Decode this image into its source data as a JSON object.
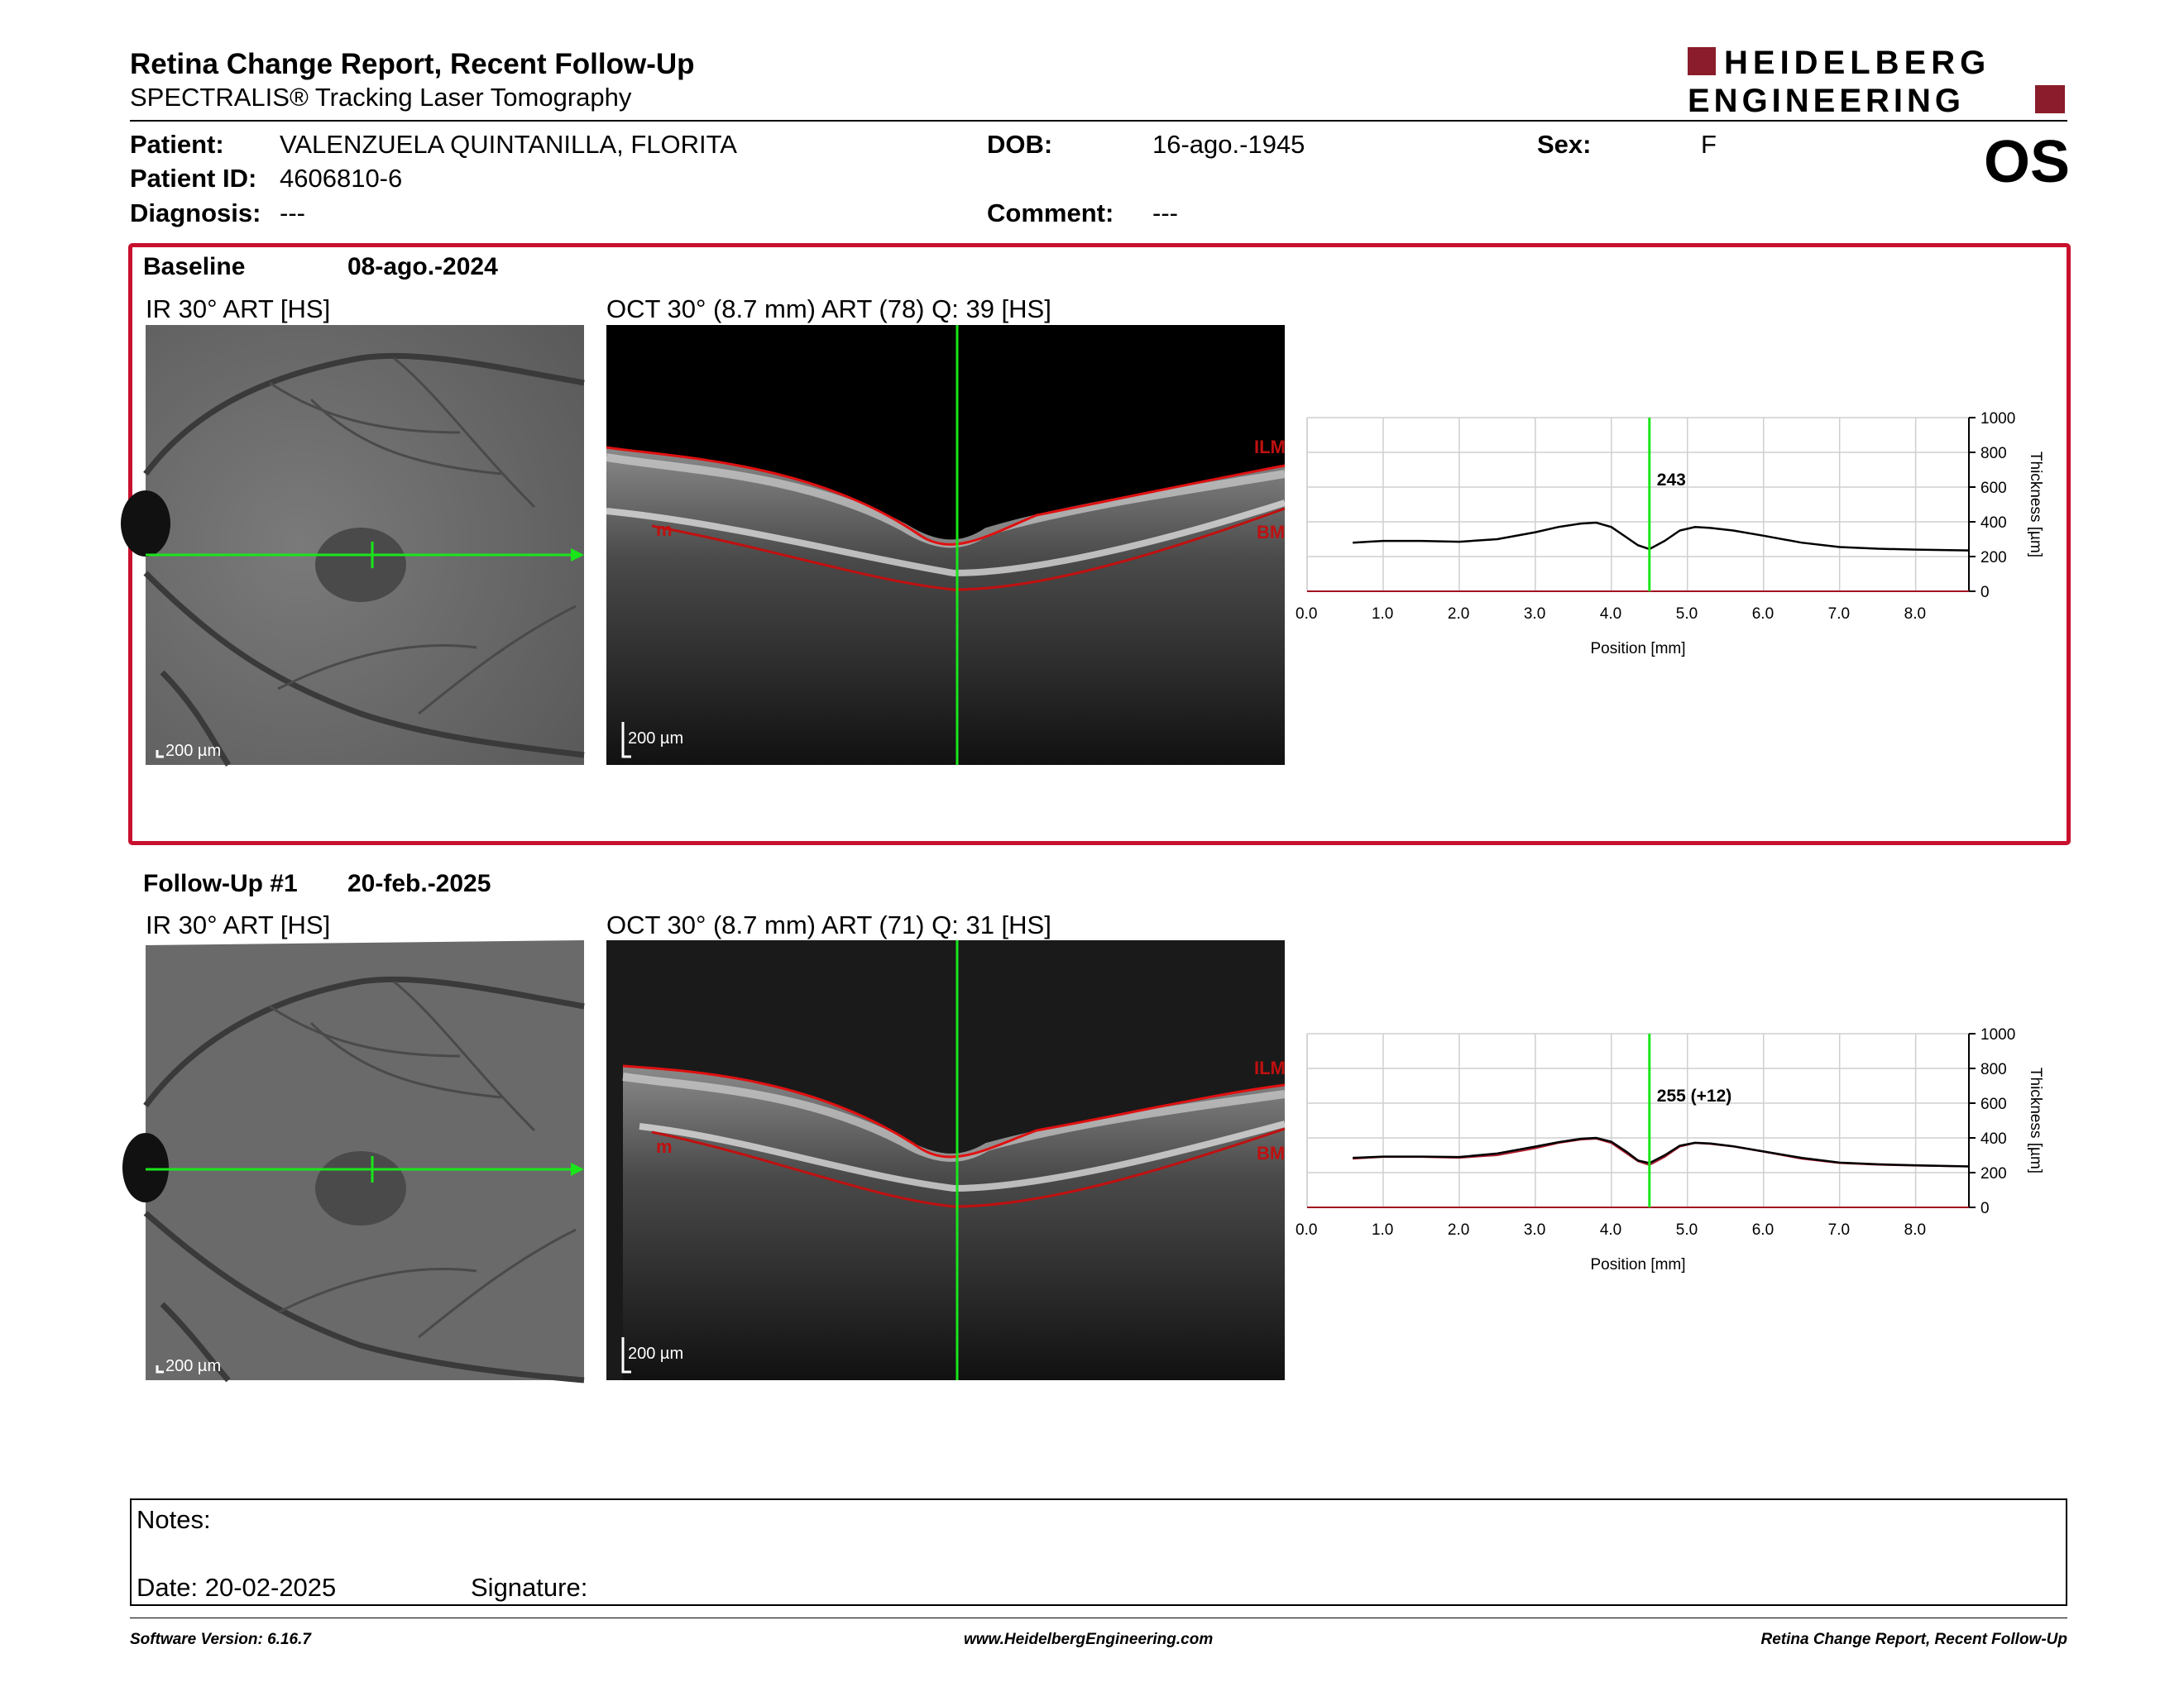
{
  "header": {
    "title": "Retina Change Report, Recent Follow-Up",
    "subtitle": "SPECTRALIS® Tracking Laser Tomography",
    "logo_line1": "HEIDELBERG",
    "logo_line2": "ENGINEERING",
    "eye": "OS"
  },
  "patient": {
    "patient_label": "Patient:",
    "patient_value": "VALENZUELA QUINTANILLA, FLORITA",
    "dob_label": "DOB:",
    "dob_value": "16-ago.-1945",
    "sex_label": "Sex:",
    "sex_value": "F",
    "id_label": "Patient ID:",
    "id_value": "4606810-6",
    "diagnosis_label": "Diagnosis:",
    "diagnosis_value": "---",
    "comment_label": "Comment:",
    "comment_value": "---"
  },
  "baseline": {
    "label": "Baseline",
    "date": "08-ago.-2024",
    "ir_caption": "IR 30° ART [HS]",
    "oct_caption": "OCT 30° (8.7 mm) ART (78) Q: 39 [HS]",
    "ir_scale": "200 µm",
    "oct_scale": "200 µm",
    "ilm_label": "ILM",
    "bm_label": "BM",
    "m_label": "m",
    "marker_value": "243"
  },
  "followup": {
    "label": "Follow-Up #1",
    "date": "20-feb.-2025",
    "ir_caption": "IR 30° ART [HS]",
    "oct_caption": "OCT 30° (8.7 mm) ART (71) Q: 31 [HS]",
    "ir_scale": "200 µm",
    "oct_scale": "200 µm",
    "ilm_label": "ILM",
    "bm_label": "BM",
    "m_label": "m",
    "marker_value": "255 (+12)"
  },
  "chart_data": [
    {
      "type": "line",
      "title": "",
      "xlabel": "Position [mm]",
      "ylabel": "Thickness [µm]",
      "xlim": [
        0,
        8.7
      ],
      "ylim": [
        0,
        1000
      ],
      "x_ticks": [
        "0.0",
        "1.0",
        "2.0",
        "3.0",
        "4.0",
        "5.0",
        "6.0",
        "7.0",
        "8.0"
      ],
      "y_ticks": [
        "0",
        "200",
        "400",
        "600",
        "800",
        "1000"
      ],
      "grid": true,
      "marker_x": 4.5,
      "marker_label": "243",
      "series": [
        {
          "x": [
            0.6,
            1.0,
            1.5,
            2.0,
            2.5,
            3.0,
            3.3,
            3.6,
            3.8,
            4.0,
            4.2,
            4.35,
            4.5,
            4.7,
            4.9,
            5.1,
            5.3,
            5.6,
            6.0,
            6.5,
            7.0,
            7.5,
            8.0,
            8.7
          ],
          "y": [
            280,
            290,
            290,
            285,
            300,
            340,
            370,
            390,
            395,
            370,
            310,
            265,
            243,
            290,
            350,
            370,
            365,
            350,
            320,
            280,
            255,
            245,
            240,
            235
          ]
        }
      ]
    },
    {
      "type": "line",
      "title": "",
      "xlabel": "Position [mm]",
      "ylabel": "Thickness [µm]",
      "xlim": [
        0,
        8.7
      ],
      "ylim": [
        0,
        1000
      ],
      "x_ticks": [
        "0.0",
        "1.0",
        "2.0",
        "3.0",
        "4.0",
        "5.0",
        "6.0",
        "7.0",
        "8.0"
      ],
      "y_ticks": [
        "0",
        "200",
        "400",
        "600",
        "800",
        "1000"
      ],
      "grid": true,
      "marker_x": 4.5,
      "marker_label": "255 (+12)",
      "series": [
        {
          "x": [
            0.6,
            1.0,
            1.5,
            2.0,
            2.5,
            3.0,
            3.3,
            3.6,
            3.8,
            4.0,
            4.2,
            4.35,
            4.5,
            4.7,
            4.9,
            5.1,
            5.3,
            5.6,
            6.0,
            6.5,
            7.0,
            7.5,
            8.0,
            8.7
          ],
          "y": [
            285,
            292,
            292,
            290,
            310,
            350,
            375,
            395,
            400,
            378,
            320,
            270,
            255,
            300,
            355,
            372,
            368,
            352,
            322,
            285,
            258,
            248,
            242,
            236
          ]
        },
        {
          "x": [
            0.6,
            1.0,
            1.5,
            2.0,
            2.5,
            3.0,
            3.3,
            3.6,
            3.8,
            4.0,
            4.2,
            4.35,
            4.5,
            4.7,
            4.9,
            5.1,
            5.3,
            5.6,
            6.0,
            6.5,
            7.0,
            7.5,
            8.0,
            8.7
          ],
          "y": [
            280,
            290,
            290,
            285,
            300,
            340,
            370,
            390,
            395,
            370,
            310,
            265,
            243,
            290,
            350,
            370,
            365,
            350,
            320,
            280,
            255,
            245,
            240,
            235
          ]
        }
      ]
    }
  ],
  "notes": {
    "notes_label": "Notes:",
    "date_label": "Date: 20-02-2025",
    "signature_label": "Signature:"
  },
  "footer": {
    "software": "Software Version: 6.16.7",
    "website": "www.HeidelbergEngineering.com",
    "report": "Retina Change Report, Recent Follow-Up"
  }
}
